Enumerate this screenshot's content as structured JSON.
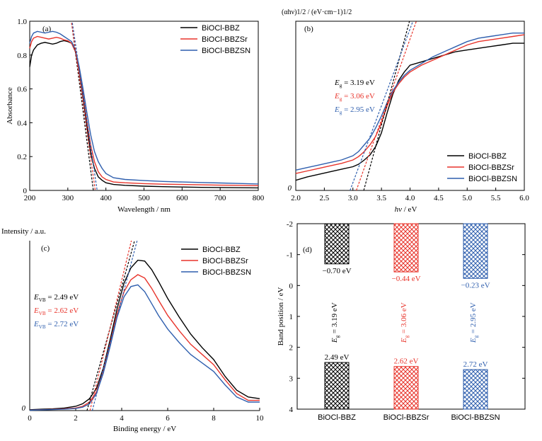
{
  "colors": {
    "bbz": "#000000",
    "sr": "#e8342b",
    "sn": "#2f5fae"
  },
  "series_names": [
    "BiOCl-BBZ",
    "BiOCl-BBZSr",
    "BiOCl-BBZSN"
  ],
  "chart_data": [
    {
      "panel": "(a)",
      "type": "line",
      "xlabel": "Wavelength / nm",
      "ylabel": "Absorbance",
      "xlim": [
        200,
        800
      ],
      "ylim": [
        0,
        1.0
      ],
      "xticks": [
        200,
        300,
        400,
        500,
        600,
        700,
        800
      ],
      "yticks": [
        0,
        0.2,
        0.4,
        0.6,
        0.8,
        1.0
      ],
      "ytick_labels": [
        "0",
        "0.2",
        "0.4",
        "0.6",
        "0.8",
        "1.0"
      ],
      "legend": "top-right",
      "series": [
        {
          "name": "BiOCl-BBZ",
          "color": "#000000",
          "x": [
            200,
            205,
            210,
            220,
            230,
            240,
            250,
            260,
            270,
            280,
            290,
            300,
            310,
            320,
            330,
            340,
            350,
            360,
            370,
            380,
            390,
            400,
            420,
            450,
            500,
            550,
            600,
            650,
            700,
            750,
            800
          ],
          "y": [
            0.73,
            0.8,
            0.83,
            0.86,
            0.87,
            0.875,
            0.87,
            0.865,
            0.87,
            0.88,
            0.885,
            0.88,
            0.87,
            0.82,
            0.7,
            0.55,
            0.38,
            0.22,
            0.13,
            0.08,
            0.06,
            0.045,
            0.035,
            0.03,
            0.025,
            0.022,
            0.02,
            0.018,
            0.017,
            0.016,
            0.015
          ]
        },
        {
          "name": "BiOCl-BBZSr",
          "color": "#e8342b",
          "x": [
            200,
            205,
            210,
            220,
            230,
            240,
            250,
            260,
            270,
            280,
            290,
            300,
            310,
            320,
            330,
            340,
            350,
            360,
            370,
            380,
            390,
            400,
            420,
            450,
            500,
            550,
            600,
            650,
            700,
            750,
            800
          ],
          "y": [
            0.84,
            0.88,
            0.9,
            0.91,
            0.905,
            0.9,
            0.895,
            0.9,
            0.905,
            0.9,
            0.89,
            0.885,
            0.87,
            0.82,
            0.71,
            0.57,
            0.41,
            0.27,
            0.17,
            0.11,
            0.08,
            0.065,
            0.05,
            0.045,
            0.04,
            0.037,
            0.035,
            0.033,
            0.031,
            0.03,
            0.028
          ]
        },
        {
          "name": "BiOCl-BBZSN",
          "color": "#2f5fae",
          "x": [
            200,
            205,
            210,
            220,
            230,
            240,
            250,
            260,
            270,
            280,
            290,
            300,
            310,
            320,
            330,
            340,
            350,
            360,
            370,
            380,
            390,
            400,
            420,
            450,
            500,
            550,
            600,
            650,
            700,
            750,
            800
          ],
          "y": [
            0.87,
            0.91,
            0.93,
            0.94,
            0.935,
            0.93,
            0.935,
            0.94,
            0.935,
            0.925,
            0.91,
            0.895,
            0.88,
            0.83,
            0.73,
            0.6,
            0.46,
            0.33,
            0.23,
            0.17,
            0.13,
            0.1,
            0.075,
            0.065,
            0.058,
            0.053,
            0.05,
            0.047,
            0.044,
            0.041,
            0.038
          ]
        }
      ],
      "fit_lines": [
        {
          "color": "#000000",
          "x": [
            310,
            367
          ],
          "y": [
            0.99,
            0.0
          ]
        },
        {
          "color": "#e8342b",
          "x": [
            310,
            372
          ],
          "y": [
            0.99,
            0.0
          ]
        },
        {
          "color": "#2f5fae",
          "x": [
            312,
            377
          ],
          "y": [
            0.99,
            0.0
          ]
        }
      ]
    },
    {
      "panel": "(b)",
      "type": "line",
      "ylabel": "(αhν)1/2 / (eV·cm−1)1/2",
      "xlim": [
        2.0,
        6.0
      ],
      "ylim": [
        0,
        1.0
      ],
      "xticks": [
        2.0,
        2.5,
        3.0,
        3.5,
        4.0,
        4.5,
        5.0,
        5.5,
        6.0
      ],
      "ytick_labels": [
        "0"
      ],
      "legend": "bottom-right",
      "annotations": [
        {
          "label": "E",
          "sub": "g",
          "text": " = 3.19 eV",
          "color": "#000000"
        },
        {
          "label": "E",
          "sub": "g",
          "text": " = 3.06 eV",
          "color": "#e8342b"
        },
        {
          "label": "E",
          "sub": "g",
          "text": " = 2.95 eV",
          "color": "#2f5fae"
        }
      ],
      "series": [
        {
          "name": "BiOCl-BBZ",
          "color": "#000000",
          "x": [
            2.0,
            2.2,
            2.4,
            2.6,
            2.8,
            3.0,
            3.1,
            3.2,
            3.3,
            3.4,
            3.5,
            3.6,
            3.7,
            3.8,
            3.9,
            4.0,
            4.2,
            4.4,
            4.6,
            4.8,
            5.0,
            5.2,
            5.4,
            5.6,
            5.8,
            6.0
          ],
          "y": [
            0.06,
            0.08,
            0.095,
            0.11,
            0.125,
            0.14,
            0.155,
            0.18,
            0.21,
            0.26,
            0.34,
            0.46,
            0.57,
            0.65,
            0.7,
            0.74,
            0.76,
            0.78,
            0.8,
            0.82,
            0.83,
            0.84,
            0.85,
            0.86,
            0.87,
            0.87
          ]
        },
        {
          "name": "BiOCl-BBZSr",
          "color": "#e8342b",
          "x": [
            2.0,
            2.2,
            2.4,
            2.6,
            2.8,
            3.0,
            3.1,
            3.2,
            3.3,
            3.4,
            3.5,
            3.6,
            3.7,
            3.8,
            3.9,
            4.0,
            4.2,
            4.4,
            4.6,
            4.8,
            5.0,
            5.2,
            5.4,
            5.6,
            5.8,
            6.0
          ],
          "y": [
            0.1,
            0.115,
            0.13,
            0.145,
            0.16,
            0.18,
            0.2,
            0.23,
            0.27,
            0.32,
            0.4,
            0.5,
            0.58,
            0.63,
            0.67,
            0.7,
            0.74,
            0.77,
            0.8,
            0.83,
            0.86,
            0.88,
            0.89,
            0.9,
            0.91,
            0.92
          ]
        },
        {
          "name": "BiOCl-BBZSN",
          "color": "#2f5fae",
          "x": [
            2.0,
            2.2,
            2.4,
            2.6,
            2.8,
            3.0,
            3.1,
            3.2,
            3.3,
            3.4,
            3.5,
            3.6,
            3.7,
            3.8,
            3.9,
            4.0,
            4.2,
            4.4,
            4.6,
            4.8,
            5.0,
            5.2,
            5.4,
            5.6,
            5.8,
            6.0
          ],
          "y": [
            0.12,
            0.135,
            0.15,
            0.165,
            0.18,
            0.205,
            0.23,
            0.27,
            0.31,
            0.37,
            0.44,
            0.52,
            0.59,
            0.64,
            0.68,
            0.71,
            0.75,
            0.79,
            0.82,
            0.85,
            0.88,
            0.9,
            0.91,
            0.92,
            0.93,
            0.93
          ]
        }
      ],
      "fit_lines": [
        {
          "color": "#000000",
          "x": [
            3.19,
            3.99
          ],
          "y": [
            0.0,
            1.0
          ]
        },
        {
          "color": "#e8342b",
          "x": [
            3.06,
            4.11
          ],
          "y": [
            0.0,
            1.0
          ]
        },
        {
          "color": "#2f5fae",
          "x": [
            2.95,
            4.05
          ],
          "y": [
            0.0,
            1.0
          ]
        }
      ]
    },
    {
      "panel": "(c)",
      "type": "line",
      "xlabel": "Binding energy / eV",
      "ylabel": "Intensity / a.u.",
      "xlim": [
        0,
        10
      ],
      "ylim": [
        0,
        1.0
      ],
      "xticks": [
        0,
        2,
        4,
        6,
        8,
        10
      ],
      "ytick_labels": [
        "0"
      ],
      "legend": "top-right",
      "annotations": [
        {
          "label": "E",
          "sub": "VB",
          "text": " = 2.49 eV",
          "color": "#000000"
        },
        {
          "label": "E",
          "sub": "VB",
          "text": " = 2.62 eV",
          "color": "#e8342b"
        },
        {
          "label": "E",
          "sub": "VB",
          "text": " = 2.72 eV",
          "color": "#2f5fae"
        }
      ],
      "series": [
        {
          "name": "BiOCl-BBZ",
          "color": "#000000",
          "x": [
            0,
            0.5,
            1,
            1.5,
            2,
            2.3,
            2.6,
            2.9,
            3.2,
            3.5,
            3.8,
            4.1,
            4.4,
            4.7,
            5.0,
            5.3,
            5.6,
            6.0,
            6.5,
            7.0,
            7.5,
            8.0,
            8.5,
            9.0,
            9.5,
            10
          ],
          "y": [
            0.005,
            0.008,
            0.01,
            0.015,
            0.025,
            0.04,
            0.07,
            0.13,
            0.25,
            0.42,
            0.6,
            0.75,
            0.84,
            0.885,
            0.88,
            0.83,
            0.76,
            0.66,
            0.55,
            0.45,
            0.37,
            0.3,
            0.2,
            0.12,
            0.08,
            0.07
          ]
        },
        {
          "name": "BiOCl-BBZSr",
          "color": "#e8342b",
          "x": [
            0,
            0.5,
            1,
            1.5,
            2,
            2.3,
            2.6,
            2.9,
            3.2,
            3.5,
            3.8,
            4.1,
            4.4,
            4.7,
            5.0,
            5.3,
            5.6,
            6.0,
            6.5,
            7.0,
            7.5,
            8.0,
            8.5,
            9.0,
            9.5,
            10
          ],
          "y": [
            0.003,
            0.005,
            0.007,
            0.01,
            0.015,
            0.025,
            0.05,
            0.11,
            0.23,
            0.4,
            0.57,
            0.7,
            0.77,
            0.8,
            0.78,
            0.72,
            0.65,
            0.56,
            0.47,
            0.39,
            0.33,
            0.27,
            0.18,
            0.1,
            0.06,
            0.06
          ]
        },
        {
          "name": "BiOCl-BBZSN",
          "color": "#2f5fae",
          "x": [
            0,
            0.5,
            1,
            1.5,
            2,
            2.3,
            2.6,
            2.9,
            3.2,
            3.5,
            3.8,
            4.1,
            4.4,
            4.7,
            5.0,
            5.3,
            5.6,
            6.0,
            6.5,
            7.0,
            7.5,
            8.0,
            8.5,
            9.0,
            9.5,
            10
          ],
          "y": [
            0.002,
            0.004,
            0.006,
            0.008,
            0.012,
            0.02,
            0.04,
            0.1,
            0.22,
            0.38,
            0.55,
            0.67,
            0.73,
            0.74,
            0.7,
            0.63,
            0.56,
            0.48,
            0.4,
            0.33,
            0.28,
            0.23,
            0.15,
            0.08,
            0.05,
            0.05
          ]
        }
      ],
      "fit_lines": [
        {
          "color": "#000000",
          "x": [
            2.49,
            4.56
          ],
          "y": [
            0.0,
            1.0
          ]
        },
        {
          "color": "#e8342b",
          "x": [
            2.62,
            4.42
          ],
          "y": [
            0.0,
            1.0
          ]
        },
        {
          "color": "#2f5fae",
          "x": [
            2.72,
            4.67
          ],
          "y": [
            0.0,
            1.0
          ]
        }
      ]
    },
    {
      "panel": "(d)",
      "type": "bar",
      "ylabel": "Band position / eV",
      "ylim": [
        -2,
        4
      ],
      "yticks": [
        -2,
        -1,
        0,
        1,
        2,
        3,
        4
      ],
      "categories": [
        "BiOCl-BBZ",
        "BiOCl-BBZSr",
        "BiOCl-BBZSN"
      ],
      "cb_values": [
        -0.7,
        -0.44,
        -0.23
      ],
      "cb_labels": [
        "−0.70 eV",
        "−0.44 eV",
        "−0.23 eV"
      ],
      "vb_values": [
        2.49,
        2.62,
        2.72
      ],
      "vb_labels": [
        "2.49 eV",
        "2.62 eV",
        "2.72 eV"
      ],
      "eg_labels": [
        {
          "label": "E",
          "sub": "g",
          "text": " = 3.19 eV"
        },
        {
          "label": "E",
          "sub": "g",
          "text": " = 3.06 eV"
        },
        {
          "label": "E",
          "sub": "g",
          "text": " = 2.95 eV"
        }
      ]
    }
  ]
}
